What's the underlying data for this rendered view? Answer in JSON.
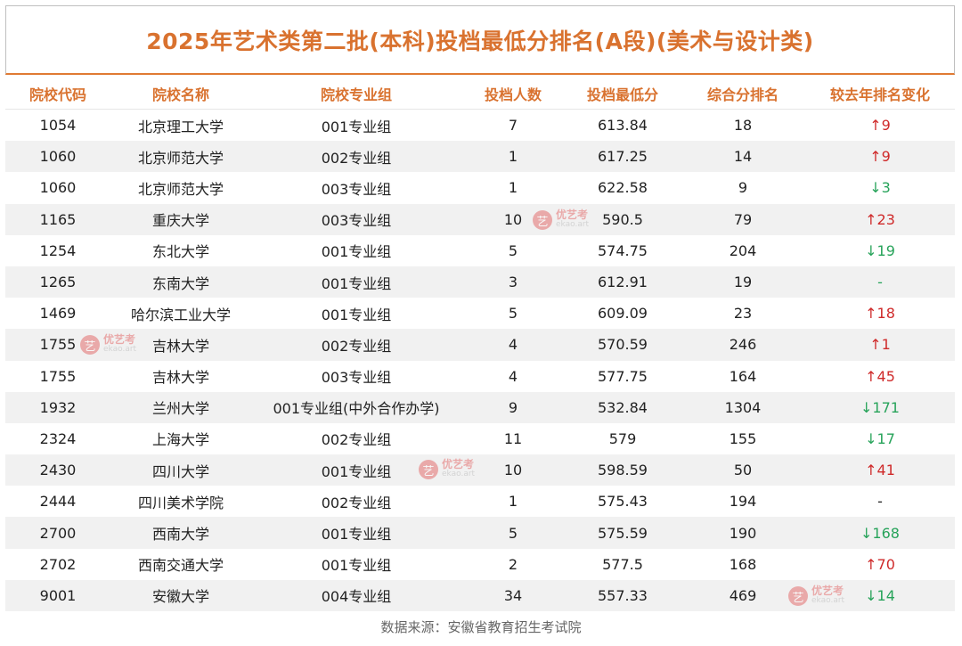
{
  "title": "2025年艺术类第二批(本科)投档最低分排名(A段)(美术与设计类)",
  "columns": [
    "院校代码",
    "院校名称",
    "院校专业组",
    "投档人数",
    "投档最低分",
    "综合分排名",
    "较去年排名变化"
  ],
  "rows": [
    {
      "code": "1054",
      "name": "北京理工大学",
      "group": "001专业组",
      "count": "7",
      "min_score": "613.84",
      "rank": "18",
      "change": "↑9",
      "dir": "up"
    },
    {
      "code": "1060",
      "name": "北京师范大学",
      "group": "002专业组",
      "count": "1",
      "min_score": "617.25",
      "rank": "14",
      "change": "↑9",
      "dir": "up"
    },
    {
      "code": "1060",
      "name": "北京师范大学",
      "group": "003专业组",
      "count": "1",
      "min_score": "622.58",
      "rank": "9",
      "change": "↓3",
      "dir": "down"
    },
    {
      "code": "1165",
      "name": "重庆大学",
      "group": "003专业组",
      "count": "10",
      "min_score": "590.5",
      "rank": "79",
      "change": "↑23",
      "dir": "up"
    },
    {
      "code": "1254",
      "name": "东北大学",
      "group": "001专业组",
      "count": "5",
      "min_score": "574.75",
      "rank": "204",
      "change": "↓19",
      "dir": "down"
    },
    {
      "code": "1265",
      "name": "东南大学",
      "group": "001专业组",
      "count": "3",
      "min_score": "612.91",
      "rank": "19",
      "change": "-",
      "dir": "dash-green"
    },
    {
      "code": "1469",
      "name": "哈尔滨工业大学",
      "group": "001专业组",
      "count": "5",
      "min_score": "609.09",
      "rank": "23",
      "change": "↑18",
      "dir": "up"
    },
    {
      "code": "1755",
      "name": "吉林大学",
      "group": "002专业组",
      "count": "4",
      "min_score": "570.59",
      "rank": "246",
      "change": "↑1",
      "dir": "up"
    },
    {
      "code": "1755",
      "name": "吉林大学",
      "group": "003专业组",
      "count": "4",
      "min_score": "577.75",
      "rank": "164",
      "change": "↑45",
      "dir": "up"
    },
    {
      "code": "1932",
      "name": "兰州大学",
      "group": "001专业组(中外合作办学)",
      "count": "9",
      "min_score": "532.84",
      "rank": "1304",
      "change": "↓171",
      "dir": "down"
    },
    {
      "code": "2324",
      "name": "上海大学",
      "group": "002专业组",
      "count": "11",
      "min_score": "579",
      "rank": "155",
      "change": "↓17",
      "dir": "down"
    },
    {
      "code": "2430",
      "name": "四川大学",
      "group": "001专业组",
      "count": "10",
      "min_score": "598.59",
      "rank": "50",
      "change": "↑41",
      "dir": "up"
    },
    {
      "code": "2444",
      "name": "四川美术学院",
      "group": "002专业组",
      "count": "1",
      "min_score": "575.43",
      "rank": "194",
      "change": "-",
      "dir": "dash-plain"
    },
    {
      "code": "2700",
      "name": "西南大学",
      "group": "001专业组",
      "count": "5",
      "min_score": "575.59",
      "rank": "190",
      "change": "↓168",
      "dir": "down"
    },
    {
      "code": "2702",
      "name": "西南交通大学",
      "group": "001专业组",
      "count": "2",
      "min_score": "577.5",
      "rank": "168",
      "change": "↑70",
      "dir": "up"
    },
    {
      "code": "9001",
      "name": "安徽大学",
      "group": "004专业组",
      "count": "34",
      "min_score": "557.33",
      "rank": "469",
      "change": "↓14",
      "dir": "down"
    }
  ],
  "footer": "数据来源：安徽省教育招生考试院",
  "watermark": {
    "badge": "艺",
    "name": "优艺考",
    "site": "ekao.art"
  }
}
